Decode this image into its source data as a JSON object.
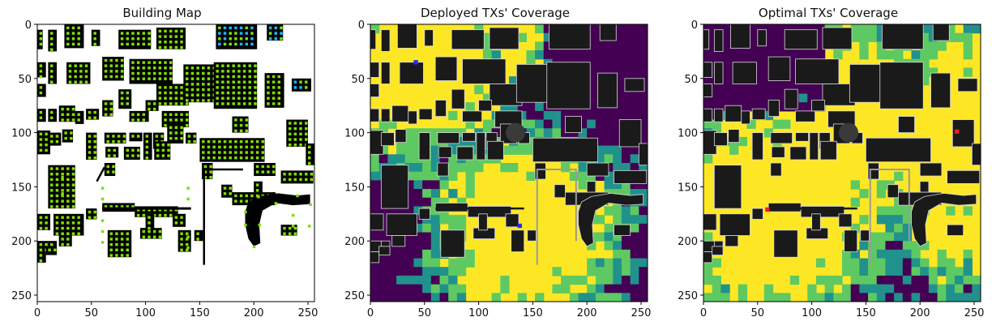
{
  "chart_data": [
    {
      "type": "heatmap",
      "title": "Building Map",
      "xlim": [
        0,
        255
      ],
      "ylim": [
        255,
        0
      ],
      "xticks": [
        0,
        50,
        100,
        150,
        200,
        250
      ],
      "yticks": [
        0,
        50,
        100,
        150,
        200,
        250
      ],
      "grid": false,
      "colors": {
        "background": "#ffffff",
        "building": "#000000",
        "marker": "#7ee000",
        "marker_alt": "#16b8ff"
      }
    },
    {
      "type": "heatmap",
      "title": "Deployed TXs' Coverage",
      "xlim": [
        0,
        255
      ],
      "ylim": [
        255,
        0
      ],
      "xticks": [
        0,
        50,
        100,
        150,
        200,
        250
      ],
      "yticks": [
        0,
        50,
        100,
        150,
        200,
        250
      ],
      "grid": false,
      "colors": {
        "high": "#fde725",
        "mid": "#5ec962",
        "low": "#21918c",
        "none": "#440154",
        "building": "#1a1a1a",
        "outline": "#d9d9d9"
      },
      "transmitters": [
        {
          "x": 42,
          "y": 35,
          "color": "#2b2bff"
        },
        {
          "x": 138,
          "y": 186,
          "color": "#2b2bff"
        }
      ]
    },
    {
      "type": "heatmap",
      "title": "Optimal TXs' Coverage",
      "xlim": [
        0,
        255
      ],
      "ylim": [
        255,
        0
      ],
      "xticks": [
        0,
        50,
        100,
        150,
        200,
        250
      ],
      "yticks": [
        0,
        50,
        100,
        150,
        200,
        250
      ],
      "grid": false,
      "colors": {
        "high": "#fde725",
        "mid": "#5ec962",
        "low": "#21918c",
        "none": "#440154",
        "building": "#1a1a1a",
        "outline": "#d9d9d9"
      },
      "transmitters": [
        {
          "x": 59,
          "y": 171,
          "color": "#ff1a1a"
        },
        {
          "x": 234,
          "y": 99,
          "color": "#ff1a1a"
        }
      ]
    }
  ]
}
